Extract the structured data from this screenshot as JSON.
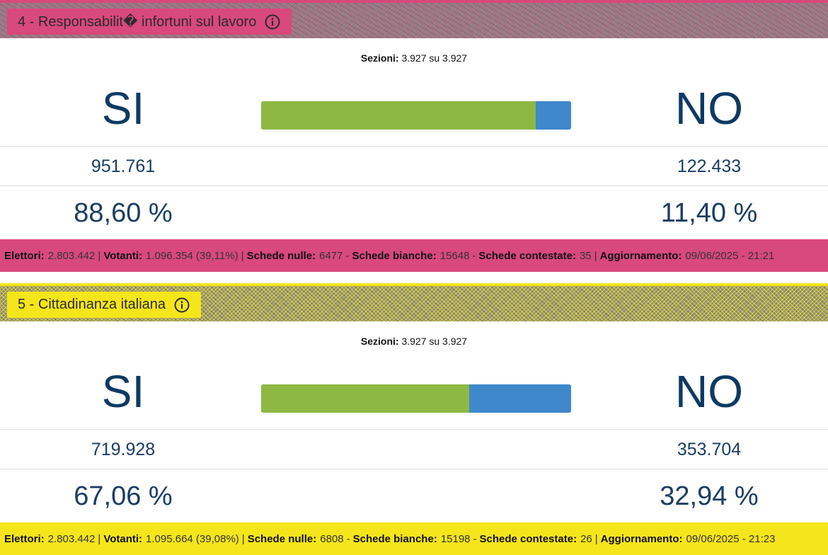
{
  "colors": {
    "yes_bar": "#8cb843",
    "no_bar": "#3f88cc",
    "number_text": "#1b3d63",
    "ref4_accent": "#d9497b",
    "ref5_accent": "#f5e51b"
  },
  "referendums": [
    {
      "title": "4 - Responsabilit� infortuni sul lavoro",
      "info_icon": "info-circle-icon",
      "sections_label": "Sezioni:",
      "sections_value": "3.927 su 3.927",
      "yes_label": "SI",
      "no_label": "NO",
      "yes_votes": "951.761",
      "no_votes": "122.433",
      "yes_pct": "88,60 %",
      "no_pct": "11,40 %",
      "yes_share": 88.6,
      "footer": {
        "electors_label": "Elettori:",
        "electors_value": "2.803.442",
        "voters_label": "Votanti:",
        "voters_value": "1.096.354 (39,11%)",
        "null_label": "Schede nulle:",
        "null_value": "6477",
        "blank_label": "Schede bianche:",
        "blank_value": "15648",
        "contested_label": "Schede contestate:",
        "contested_value": "35",
        "update_label": "Aggiornamento:",
        "update_value": "09/06/2025 - 21:21"
      }
    },
    {
      "title": "5 - Cittadinanza italiana",
      "info_icon": "info-circle-icon",
      "sections_label": "Sezioni:",
      "sections_value": "3.927 su 3.927",
      "yes_label": "SI",
      "no_label": "NO",
      "yes_votes": "719.928",
      "no_votes": "353.704",
      "yes_pct": "67,06 %",
      "no_pct": "32,94 %",
      "yes_share": 67.06,
      "footer": {
        "electors_label": "Elettori:",
        "electors_value": "2.803.442",
        "voters_label": "Votanti:",
        "voters_value": "1.095.664 (39,08%)",
        "null_label": "Schede nulle:",
        "null_value": "6808",
        "blank_label": "Schede bianche:",
        "blank_value": "15198",
        "contested_label": "Schede contestate:",
        "contested_value": "26",
        "update_label": "Aggiornamento:",
        "update_value": "09/06/2025 - 21:23"
      }
    }
  ]
}
